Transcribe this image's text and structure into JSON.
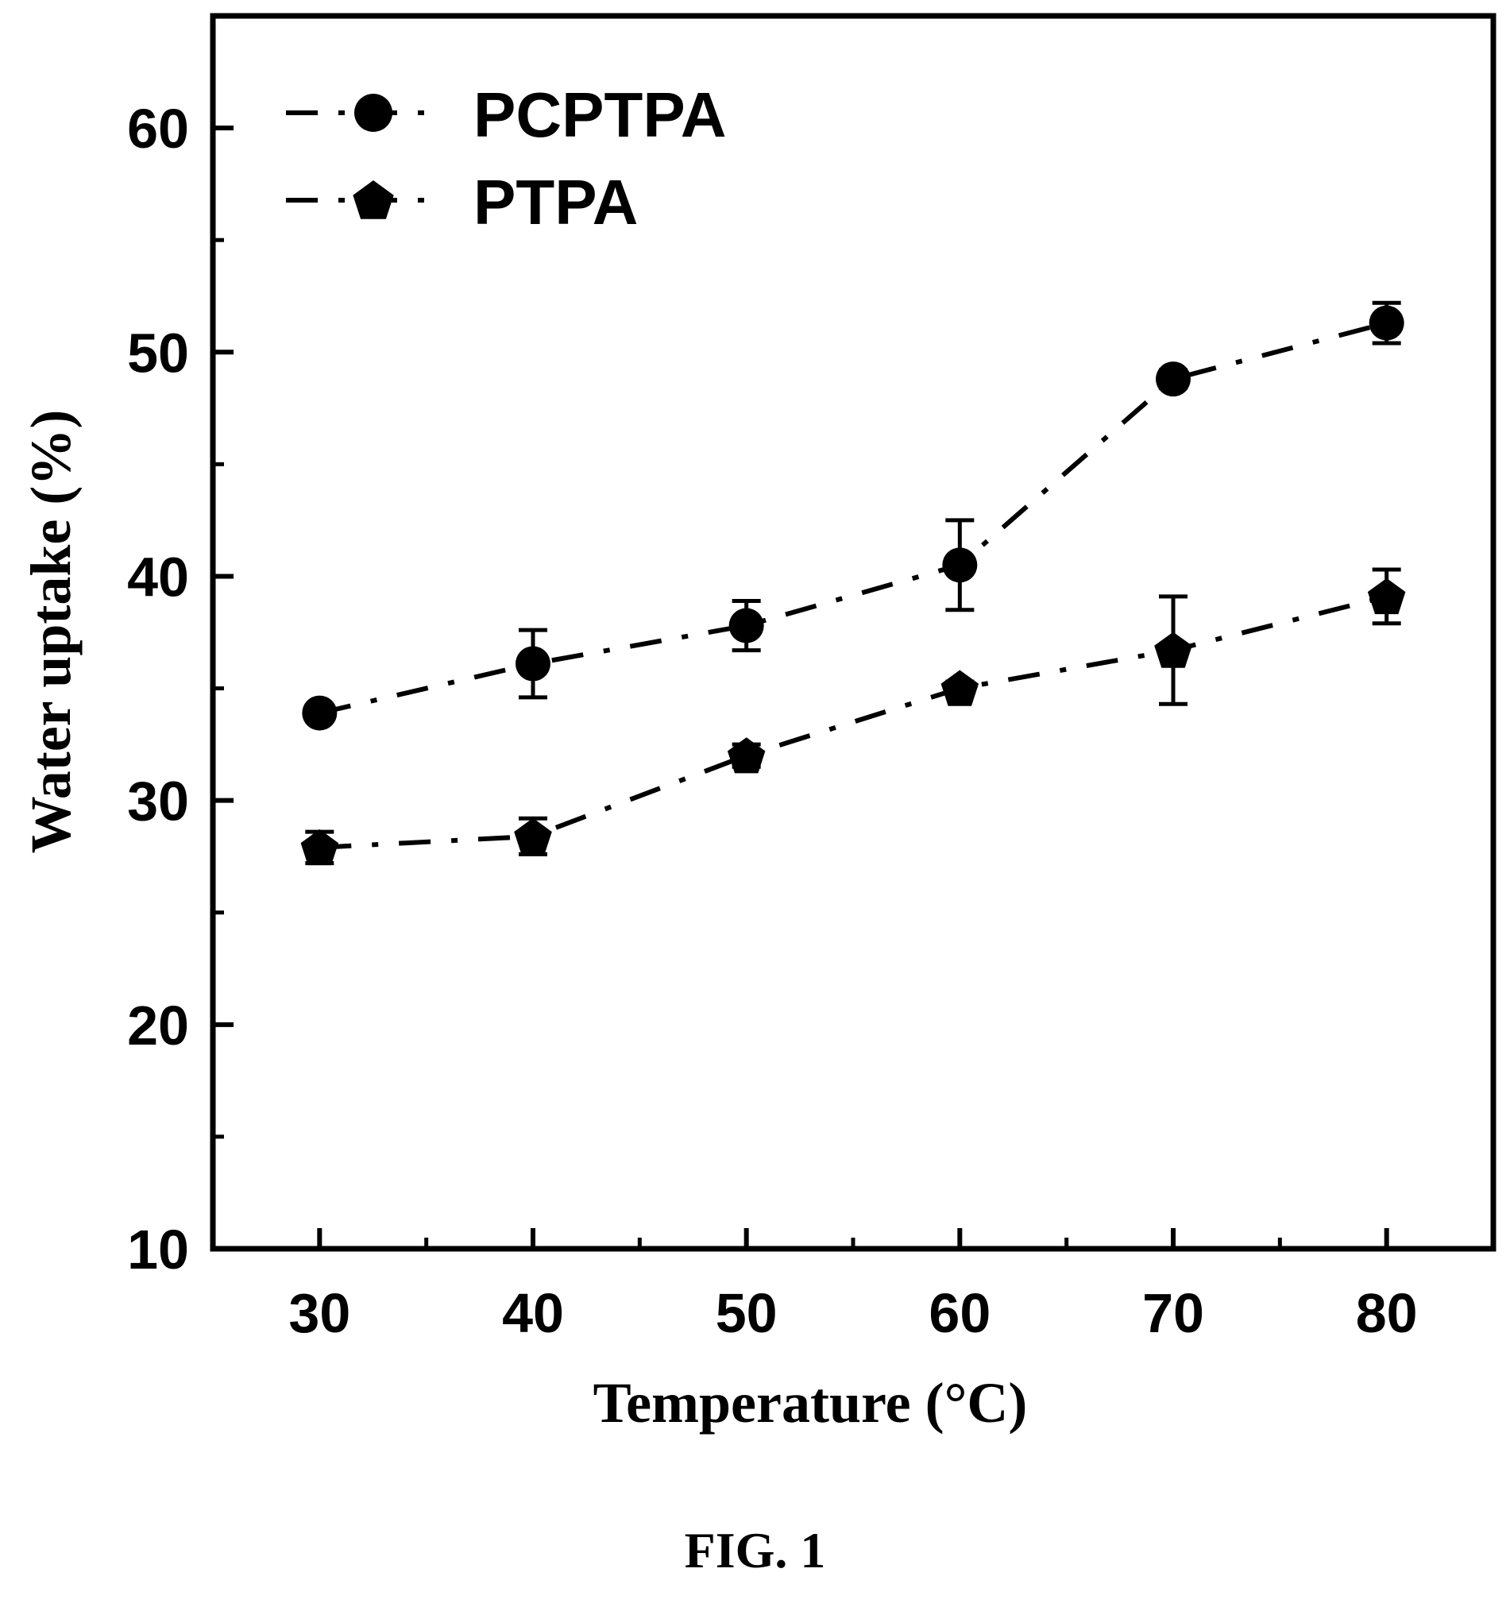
{
  "chart_data": {
    "type": "line",
    "title": "",
    "xlabel": "Temperature (°C)",
    "ylabel": "Water uptake (%)",
    "x": [
      30,
      40,
      50,
      60,
      70,
      80
    ],
    "xlim": [
      25,
      85
    ],
    "ylim": [
      10,
      65
    ],
    "x_ticks": [
      "30",
      "40",
      "50",
      "60",
      "70",
      "80"
    ],
    "y_ticks": [
      "10",
      "20",
      "30",
      "40",
      "50",
      "60"
    ],
    "grid": false,
    "legend_position": "top-left",
    "line_style": "dash-dot",
    "series": [
      {
        "name": "PCPTPA",
        "marker": "circle",
        "values": [
          33.9,
          36.1,
          37.8,
          40.5,
          48.8,
          51.3
        ],
        "errors": [
          0.3,
          1.5,
          1.1,
          2.0,
          0.4,
          0.9
        ]
      },
      {
        "name": "PTPA",
        "marker": "pentagon",
        "values": [
          27.9,
          28.4,
          32.0,
          35.0,
          36.7,
          39.1
        ],
        "errors": [
          0.7,
          0.8,
          0.5,
          0.3,
          2.4,
          1.2
        ]
      }
    ],
    "colors": {
      "line": "#000000",
      "marker": "#000000"
    }
  },
  "caption": "FIG. 1"
}
